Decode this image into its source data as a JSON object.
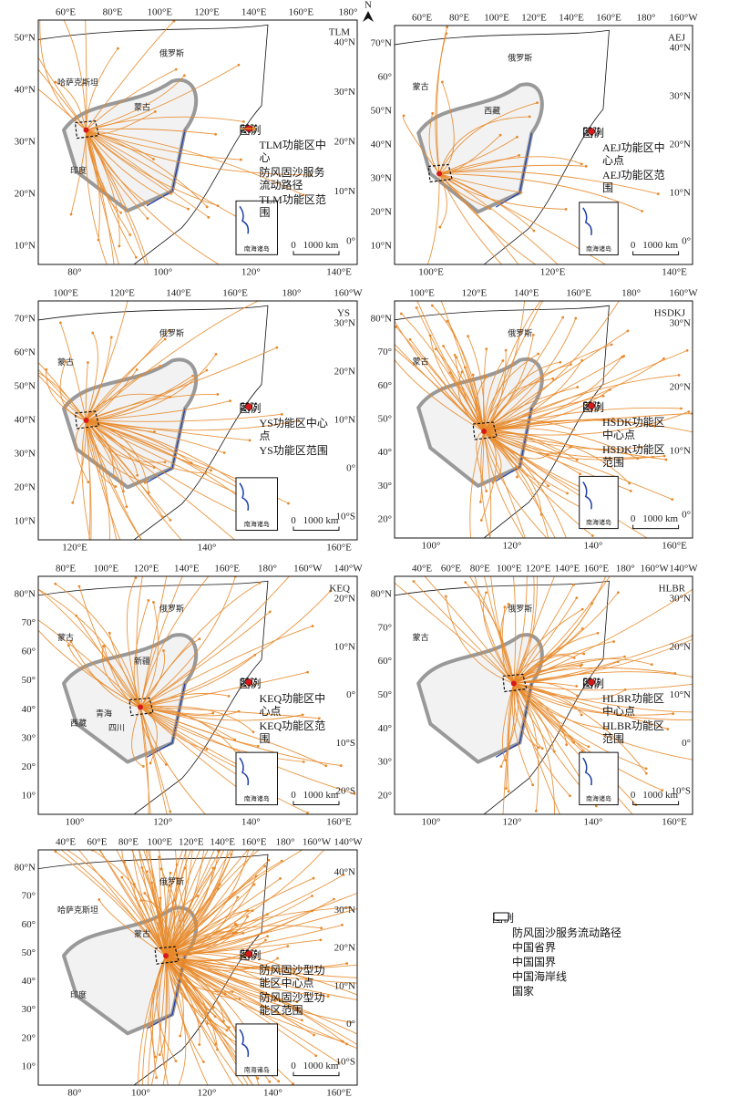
{
  "north": "N",
  "panels": [
    {
      "code": "TLM",
      "top_labels": [
        "60°E",
        "80°E",
        "100°E",
        "120°E",
        "140°E",
        "160°E",
        "180°"
      ],
      "left_labels": [
        "50°N",
        "40°N",
        "30°N",
        "20°N",
        "10°N"
      ],
      "right_labels": [
        "40°N",
        "30°N",
        "20°N",
        "10°N",
        "0°"
      ],
      "bottom_labels": [
        "80°",
        "100°",
        "120°",
        "140°E"
      ],
      "places": [
        "俄罗斯",
        "哈萨克斯坦",
        "蒙古",
        "印度"
      ],
      "legend": {
        "title": "图例",
        "center": "TLM功能区中心",
        "flow": "防风固沙服务流动路径",
        "range": "TLM功能区范围"
      },
      "inset": "南海诸岛",
      "scale": [
        "0",
        "1000 km"
      ]
    },
    {
      "code": "AEJ",
      "top_labels": [
        "60°E",
        "80°E",
        "100°E",
        "120°E",
        "140°E",
        "160°E",
        "180°",
        "160°W"
      ],
      "left_labels": [
        "70°N",
        "60°",
        "50°N",
        "40°N",
        "30°N",
        "20°N",
        "10°N"
      ],
      "right_labels": [
        "40°N",
        "30°N",
        "20°N",
        "10°N",
        "0°"
      ],
      "bottom_labels": [
        "100°E",
        "120°E",
        "140°E"
      ],
      "places": [
        "俄罗斯",
        "蒙古",
        "西藏"
      ],
      "legend": {
        "title": "图例",
        "center": "AEJ功能区中心点",
        "range": "AEJ功能区范围"
      },
      "inset": "南海诸岛",
      "scale": [
        "0",
        "1000 km"
      ]
    },
    {
      "code": "YS",
      "top_labels": [
        "100°E",
        "120°E",
        "140°E",
        "160°E",
        "180°",
        "160°W"
      ],
      "left_labels": [
        "70°N",
        "60°N",
        "50°N",
        "40°N",
        "30°N",
        "20°N",
        "10°N"
      ],
      "right_labels": [
        "30°N",
        "20°N",
        "10°N",
        "0°",
        "10°S"
      ],
      "bottom_labels": [
        "120°E",
        "140°",
        "160°E"
      ],
      "places": [
        "俄罗斯",
        "蒙古"
      ],
      "legend": {
        "title": "图例",
        "center": "YS功能区中心点",
        "range": "YS功能区范围"
      },
      "inset": "南海诸岛",
      "scale": [
        "0",
        "1000 km"
      ]
    },
    {
      "code": "HSDKJ",
      "top_labels": [
        "100°E",
        "120°E",
        "140°E",
        "160°E",
        "180°",
        "160°W"
      ],
      "left_labels": [
        "80°N",
        "70°",
        "60°",
        "50°",
        "40°",
        "30°",
        "20°"
      ],
      "right_labels": [
        "30°N",
        "20°N",
        "10°N",
        "0°"
      ],
      "bottom_labels": [
        "100°",
        "120°",
        "140°",
        "160°E"
      ],
      "places": [
        "俄罗斯",
        "蒙古"
      ],
      "legend": {
        "title": "图例",
        "center": "HSDK功能区中心点",
        "range": "HSDK功能区范围"
      },
      "inset": "南海诸岛",
      "scale": [
        "0",
        "1000 km"
      ]
    },
    {
      "code": "KEQ",
      "top_labels": [
        "80°E",
        "100°E",
        "120°E",
        "140°E",
        "160°E",
        "180°",
        "160°W",
        "140°W"
      ],
      "left_labels": [
        "80°N",
        "70°",
        "60°",
        "50°",
        "40°",
        "30°",
        "20°",
        "10°"
      ],
      "right_labels": [
        "20°N",
        "10°N",
        "0°",
        "10°S",
        "20°S"
      ],
      "bottom_labels": [
        "100°",
        "120°",
        "140°",
        "160°E"
      ],
      "places": [
        "俄罗斯",
        "蒙古",
        "新疆",
        "西藏",
        "青海",
        "四川"
      ],
      "legend": {
        "title": "图例",
        "center": "KEQ功能区中心点",
        "range": "KEQ功能区范围"
      },
      "inset": "南海诸岛",
      "scale": [
        "0",
        "1000 km"
      ]
    },
    {
      "code": "HLBR",
      "top_labels": [
        "40°E",
        "60°E",
        "80°E",
        "100°E",
        "120°E",
        "140°E",
        "160°E",
        "180°",
        "160°W",
        "140°W"
      ],
      "left_labels": [
        "80°N",
        "70°",
        "60°",
        "50°",
        "40°",
        "30°",
        "20°"
      ],
      "right_labels": [
        "30°N",
        "20°N",
        "10°N",
        "0°",
        "10°S"
      ],
      "bottom_labels": [
        "100°",
        "120°",
        "140°",
        "160°E"
      ],
      "places": [
        "俄罗斯",
        "蒙古"
      ],
      "legend": {
        "title": "图例",
        "center": "HLBR功能区中心点",
        "range": "HLBR功能区范围"
      },
      "inset": "南海诸岛",
      "scale": [
        "0",
        "1000 km"
      ]
    },
    {
      "top_labels": [
        "40°E",
        "60°E",
        "80°E",
        "100°E",
        "120°E",
        "140°E",
        "160°E",
        "180°",
        "160°W",
        "140°W"
      ],
      "left_labels": [
        "80°N",
        "70°",
        "60°",
        "50°",
        "40°",
        "30°",
        "20°",
        "10°"
      ],
      "right_labels": [
        "40°N",
        "30°N",
        "20°N",
        "10°N",
        "0°",
        "10°S"
      ],
      "bottom_labels": [
        "80°",
        "100°",
        "120°",
        "140°",
        "160°E"
      ],
      "places": [
        "俄罗斯",
        "哈萨克斯坦",
        "蒙古",
        "印度"
      ],
      "legend": {
        "title": "图例",
        "center": "防风固沙型功能区中心点",
        "range": "防风固沙型功能区范围"
      },
      "inset": "南海诸岛",
      "scale": [
        "0",
        "1000 km"
      ]
    }
  ],
  "main_legend": {
    "title": "图例",
    "items": [
      "防风固沙服务流动路径",
      "中国省界",
      "中国国界",
      "中国海岸线",
      "国家"
    ]
  }
}
